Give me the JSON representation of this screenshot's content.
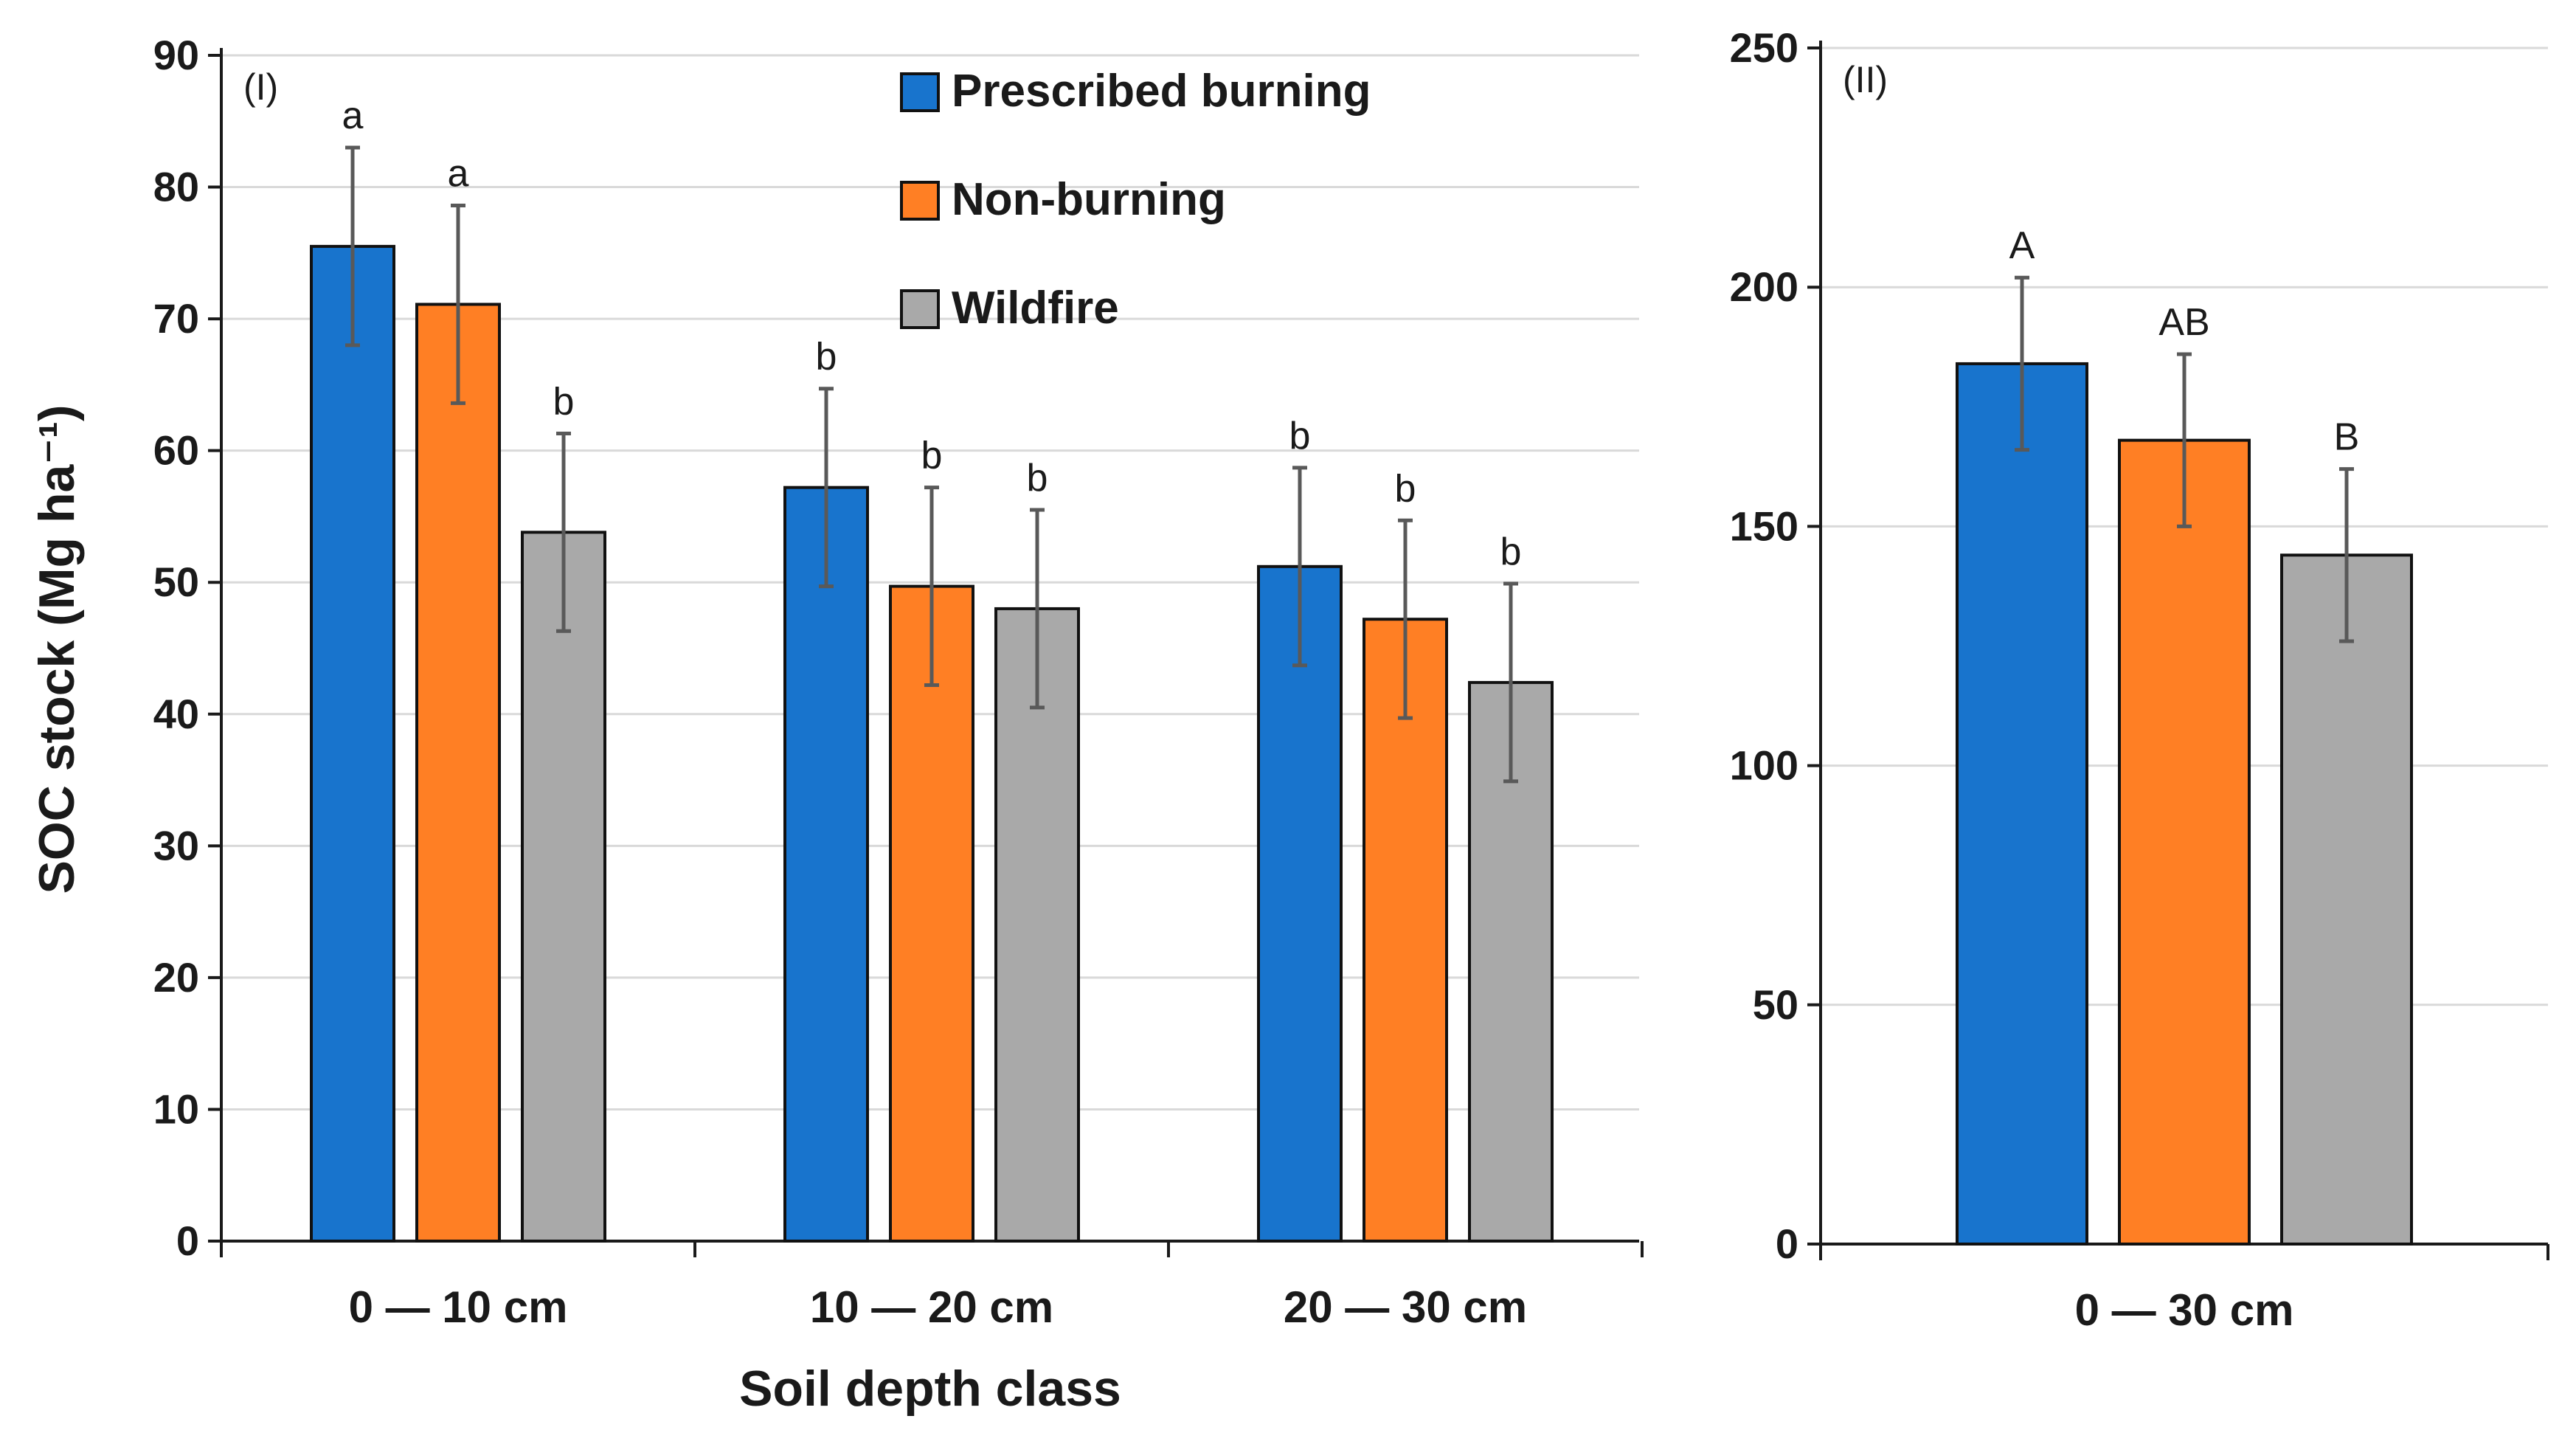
{
  "colors": {
    "prescribed": "#1874CD",
    "nonburning": "#FF7F24",
    "wildfire": "#A9A9A9",
    "error": "#595959",
    "grid": "#D9D9D9",
    "axis": "#1a1a1a"
  },
  "legend": [
    "Prescribed burning",
    "Non-burning",
    "Wildfire"
  ],
  "shared_ylabel": "SOC stock (Mg ha⁻¹)",
  "chart_data": [
    {
      "type": "bar",
      "panel": "(I)",
      "xlabel": "Soil depth class",
      "ylabel": "SOC stock (Mg ha⁻¹)",
      "ylim": [
        0,
        90
      ],
      "ytick_step": 10,
      "categories": [
        "0 — 10 cm",
        "10 — 20 cm",
        "20 — 30 cm"
      ],
      "series": [
        {
          "name": "Prescribed burning",
          "values": [
            75.5,
            57.2,
            51.2
          ],
          "errors": [
            7.5,
            7.5,
            7.5
          ],
          "labels": [
            "a",
            "b",
            "b"
          ]
        },
        {
          "name": "Non-burning",
          "values": [
            71.1,
            49.7,
            47.2
          ],
          "errors": [
            7.5,
            7.5,
            7.5
          ],
          "labels": [
            "a",
            "b",
            "b"
          ]
        },
        {
          "name": "Wildfire",
          "values": [
            53.8,
            48.0,
            42.4
          ],
          "errors": [
            7.5,
            7.5,
            7.5
          ],
          "labels": [
            "b",
            "b",
            "b"
          ]
        }
      ],
      "grid": true
    },
    {
      "type": "bar",
      "panel": "(II)",
      "xlabel": "",
      "ylabel": "",
      "ylim": [
        0,
        250
      ],
      "ytick_step": 50,
      "categories": [
        "0 — 30 cm"
      ],
      "series": [
        {
          "name": "Prescribed burning",
          "values": [
            184
          ],
          "errors": [
            18
          ],
          "labels": [
            "A"
          ]
        },
        {
          "name": "Non-burning",
          "values": [
            168
          ],
          "errors": [
            18
          ],
          "labels": [
            "AB"
          ]
        },
        {
          "name": "Wildfire",
          "values": [
            144
          ],
          "errors": [
            18
          ],
          "labels": [
            "B"
          ]
        }
      ],
      "grid": true
    }
  ]
}
